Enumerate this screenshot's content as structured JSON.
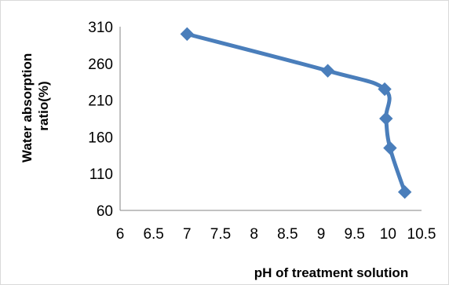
{
  "chart_data": {
    "type": "line",
    "title": "",
    "xlabel": "pH of treatment solution",
    "ylabel_lines": [
      "Water absorption",
      "ratio(%)"
    ],
    "xlim": [
      6,
      10.5
    ],
    "ylim": [
      60,
      310
    ],
    "x_ticks": [
      "6",
      "6.5",
      "7",
      "7.5",
      "8",
      "8.5",
      "9",
      "9.5",
      "10",
      "10.5"
    ],
    "y_ticks": [
      "60",
      "110",
      "160",
      "210",
      "260",
      "310"
    ],
    "grid": false,
    "legend": "none",
    "series": [
      {
        "color": "#4a7ebb",
        "marker": "diamond",
        "points": [
          {
            "x": 7.0,
            "y": 300
          },
          {
            "x": 9.1,
            "y": 250
          },
          {
            "x": 9.95,
            "y": 225
          },
          {
            "x": 9.97,
            "y": 185
          },
          {
            "x": 10.03,
            "y": 145
          },
          {
            "x": 10.25,
            "y": 85
          }
        ]
      }
    ]
  }
}
